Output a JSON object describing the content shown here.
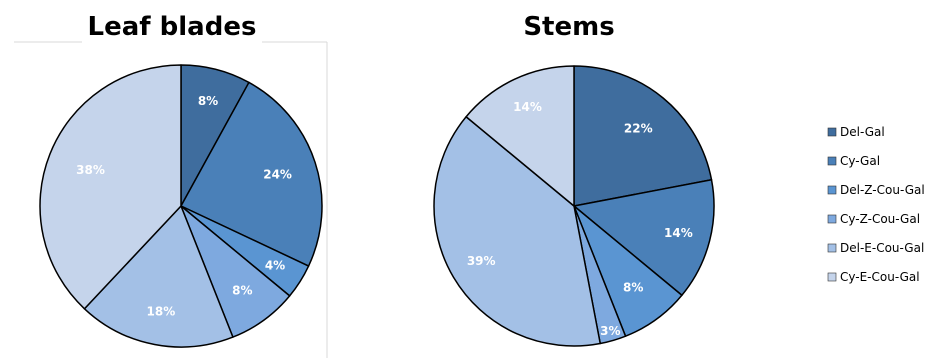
{
  "chart_data": [
    {
      "type": "pie",
      "title": "Leaf blades",
      "categories": [
        "Del-Gal",
        "Cy-Gal",
        "Del-Z-Cou-Gal",
        "Cy-Z-Cou-Gal",
        "Del-E-Cou-Gal",
        "Cy-E-Cou-Gal"
      ],
      "values": [
        8,
        24,
        4,
        8,
        18,
        38
      ],
      "labels": [
        "8%",
        "24%",
        "4%",
        "8%",
        "18%",
        "38%"
      ],
      "unit": "%"
    },
    {
      "type": "pie",
      "title": "Stems",
      "categories": [
        "Del-Gal",
        "Cy-Gal",
        "Del-Z-Cou-Gal",
        "Cy-Z-Cou-Gal",
        "Del-E-Cou-Gal",
        "Cy-E-Cou-Gal"
      ],
      "values": [
        22,
        14,
        8,
        3,
        39,
        14
      ],
      "labels": [
        "22%",
        "14%",
        "8%",
        "3%",
        "39%",
        "14%"
      ],
      "unit": "%"
    }
  ],
  "legend": {
    "placement": "right",
    "items": [
      "Del-Gal",
      "Cy-Gal",
      "Del-Z-Cou-Gal",
      "Cy-Z-Cou-Gal",
      "Del-E-Cou-Gal",
      "Cy-E-Cou-Gal"
    ]
  },
  "colors": {
    "Del-Gal": "#3f6d9e",
    "Cy-Gal": "#4a80b8",
    "Del-Z-Cou-Gal": "#5a95d2",
    "Cy-Z-Cou-Gal": "#7ea9df",
    "Del-E-Cou-Gal": "#a3c0e6",
    "Cy-E-Cou-Gal": "#c5d4eb",
    "outline": "#000000"
  }
}
